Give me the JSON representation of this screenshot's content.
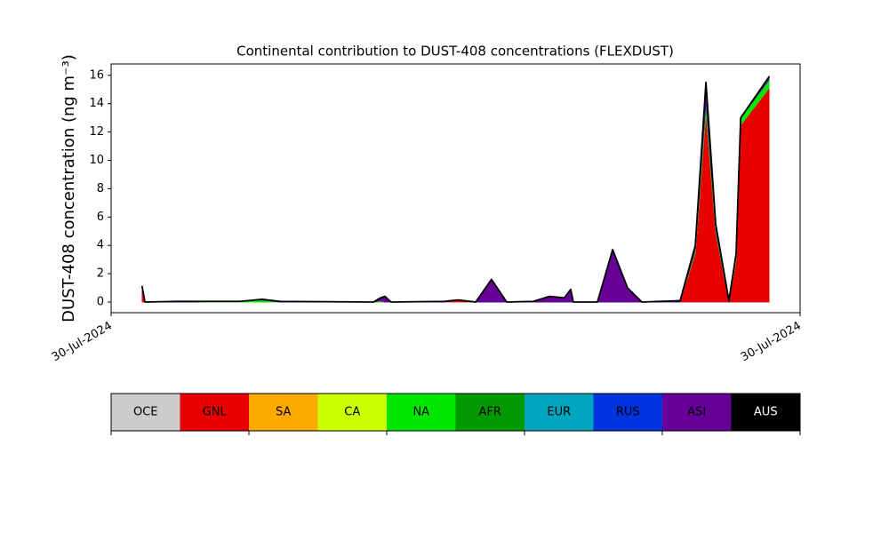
{
  "chart_data": {
    "type": "stacked_area",
    "title": "Continental contribution to DUST-408 concentrations (FLEXDUST)",
    "y_label": "DUST-408 concentration (ng m⁻³)",
    "x": [
      1.08,
      1.18,
      2.32,
      4.49,
      5.26,
      5.88,
      9.14,
      9.38,
      9.54,
      9.75,
      11.61,
      12.08,
      12.7,
      13.25,
      13.78,
      14.71,
      15.27,
      15.79,
      16.01,
      16.1,
      16.94,
      17.47,
      17.99,
      18.49,
      19.82,
      20.35,
      20.72,
      21.06,
      21.52,
      21.77,
      21.93,
      22.92
    ],
    "xlim": [
      0,
      24
    ],
    "xticks": [
      {
        "value": 0,
        "label": "30-Jul-2024"
      },
      {
        "value": 24,
        "label": "30-Jul-2024"
      }
    ],
    "ylim": [
      -0.75,
      16.8
    ],
    "yticks": [
      0,
      2,
      4,
      6,
      8,
      10,
      12,
      14,
      16
    ],
    "series": [
      {
        "name": "OCE",
        "color": "#cccccc",
        "values": [
          0,
          0,
          0,
          0,
          0,
          0,
          0,
          0,
          0,
          0,
          0,
          0,
          0,
          0,
          0,
          0,
          0,
          0,
          0,
          0,
          0,
          0,
          0,
          0,
          0,
          0,
          0,
          0,
          0,
          0,
          0,
          0
        ]
      },
      {
        "name": "GNL",
        "color": "#e60000",
        "values": [
          1.1,
          0,
          0,
          0,
          0,
          0,
          0,
          0,
          0,
          0,
          0,
          0.15,
          0,
          0,
          0,
          0,
          0,
          0,
          0,
          0,
          0,
          0,
          0,
          0,
          0,
          3.5,
          13.5,
          5.0,
          0,
          3.0,
          12.5,
          15.1
        ]
      },
      {
        "name": "SA",
        "color": "#ffaa00",
        "values": [
          0,
          0,
          0,
          0,
          0,
          0,
          0,
          0,
          0,
          0,
          0,
          0,
          0,
          0,
          0,
          0,
          0,
          0,
          0,
          0,
          0,
          0,
          0,
          0,
          0,
          0,
          0,
          0,
          0,
          0,
          0,
          0
        ]
      },
      {
        "name": "CA",
        "color": "#ccff00",
        "values": [
          0,
          0,
          0,
          0,
          0,
          0,
          0,
          0,
          0,
          0,
          0,
          0,
          0,
          0,
          0,
          0,
          0,
          0,
          0,
          0,
          0,
          0,
          0,
          0,
          0,
          0,
          0,
          0,
          0,
          0,
          0,
          0
        ]
      },
      {
        "name": "NA",
        "color": "#00e600",
        "values": [
          0,
          0,
          0,
          0.05,
          0.15,
          0,
          0,
          0.1,
          0,
          0,
          0,
          0,
          0,
          0,
          0,
          0,
          0,
          0,
          0,
          0,
          0,
          0,
          0,
          0,
          0,
          0.2,
          0.7,
          0.2,
          0,
          0.2,
          0.5,
          0.6
        ]
      },
      {
        "name": "AFR",
        "color": "#009900",
        "values": [
          0,
          0,
          0,
          0,
          0,
          0,
          0,
          0,
          0,
          0,
          0,
          0,
          0,
          0,
          0,
          0,
          0,
          0,
          0,
          0,
          0,
          0,
          0,
          0,
          0,
          0,
          0,
          0,
          0,
          0,
          0,
          0
        ]
      },
      {
        "name": "EUR",
        "color": "#00a6c0",
        "values": [
          0,
          0,
          0,
          0,
          0,
          0,
          0,
          0,
          0,
          0,
          0,
          0,
          0,
          0,
          0,
          0,
          0,
          0,
          0,
          0,
          0,
          0,
          0,
          0,
          0,
          0,
          0,
          0,
          0,
          0,
          0,
          0
        ]
      },
      {
        "name": "RUS",
        "color": "#0033dd",
        "values": [
          0,
          0,
          0,
          0,
          0,
          0,
          0,
          0,
          0,
          0,
          0,
          0,
          0,
          0,
          0,
          0,
          0,
          0,
          0,
          0,
          0,
          0,
          0,
          0,
          0,
          0,
          0,
          0,
          0,
          0,
          0,
          0
        ]
      },
      {
        "name": "ASI",
        "color": "#660099",
        "values": [
          0,
          0,
          0.05,
          0,
          0.05,
          0.05,
          0,
          0.2,
          0.4,
          0,
          0.05,
          0,
          0,
          1.6,
          0,
          0.05,
          0.4,
          0.3,
          0.9,
          0,
          0,
          3.7,
          1.0,
          0,
          0.1,
          0.3,
          1.3,
          0.3,
          0.1,
          0.2,
          0,
          0.2
        ]
      },
      {
        "name": "AUS",
        "color": "#000000",
        "values": [
          0,
          0,
          0,
          0,
          0,
          0,
          0,
          0,
          0,
          0,
          0,
          0,
          0,
          0,
          0,
          0,
          0,
          0,
          0,
          0,
          0,
          0,
          0,
          0,
          0,
          0,
          0,
          0,
          0,
          0,
          0,
          0
        ]
      }
    ]
  }
}
